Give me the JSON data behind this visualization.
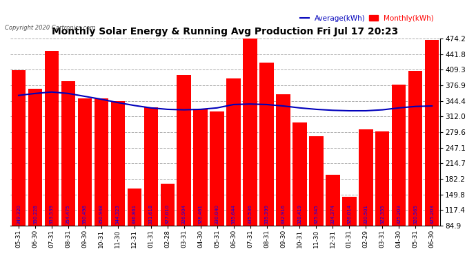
{
  "title": "Monthly Solar Energy & Running Avg Production Fri Jul 17 20:23",
  "copyright": "Copyright 2020 Cartronics.com",
  "legend_avg": "Average(kWh)",
  "legend_monthly": "Monthly(kWh)",
  "categories": [
    "05-31",
    "06-30",
    "07-31",
    "08-31",
    "09-30",
    "10-31",
    "11-30",
    "12-31",
    "01-31",
    "02-28",
    "03-31",
    "04-30",
    "05-31",
    "06-30",
    "07-31",
    "08-31",
    "09-30",
    "10-31",
    "11-30",
    "12-31",
    "01-31",
    "02-29",
    "03-31",
    "04-30",
    "05-31",
    "06-30"
  ],
  "monthly_values": [
    409,
    370,
    449,
    385,
    350,
    350,
    344,
    163,
    331,
    172,
    399,
    328,
    323,
    391,
    484,
    424,
    358,
    300,
    271,
    191,
    145,
    285,
    281,
    379,
    407,
    472
  ],
  "bar_labels": [
    "349.320",
    "350.228",
    "353.539",
    "354.475",
    "350.498",
    "350.948",
    "344.323",
    "336.861",
    "331.618",
    "327.010",
    "326.904",
    "328.461",
    "330.040",
    "335.644",
    "335.536",
    "335.399",
    "332.916",
    "328.419",
    "325.345",
    "324.374",
    "326.014",
    "320.501",
    "322.355",
    "325.203",
    "320.565",
    "325.203"
  ],
  "avg_values": [
    356,
    360,
    363,
    360,
    354,
    348,
    341,
    335,
    330,
    327,
    326,
    327,
    330,
    337,
    338,
    337,
    334,
    330,
    327,
    325,
    324,
    324,
    326,
    330,
    333,
    334
  ],
  "bar_color": "#ff0000",
  "avg_color": "#0000bb",
  "background_color": "#ffffff",
  "title_color": "#000000",
  "ytick_labels": [
    "84.9",
    "117.4",
    "149.8",
    "182.2",
    "214.7",
    "247.1",
    "279.6",
    "312.0",
    "344.4",
    "376.9",
    "409.3",
    "441.8",
    "474.2"
  ],
  "ytick_values": [
    84.9,
    117.4,
    149.8,
    182.2,
    214.7,
    247.1,
    279.6,
    312.0,
    344.4,
    376.9,
    409.3,
    441.8,
    474.2
  ],
  "ymin": 84.9,
  "ymax": 474.2,
  "grid_color": "#aaaaaa",
  "bar_label_color": "#0000ff",
  "bar_label_fontsize": 5.0,
  "title_fontsize": 10,
  "copyright_fontsize": 6,
  "xtick_fontsize": 6.5,
  "ytick_fontsize": 7.5,
  "legend_fontsize": 7.5
}
